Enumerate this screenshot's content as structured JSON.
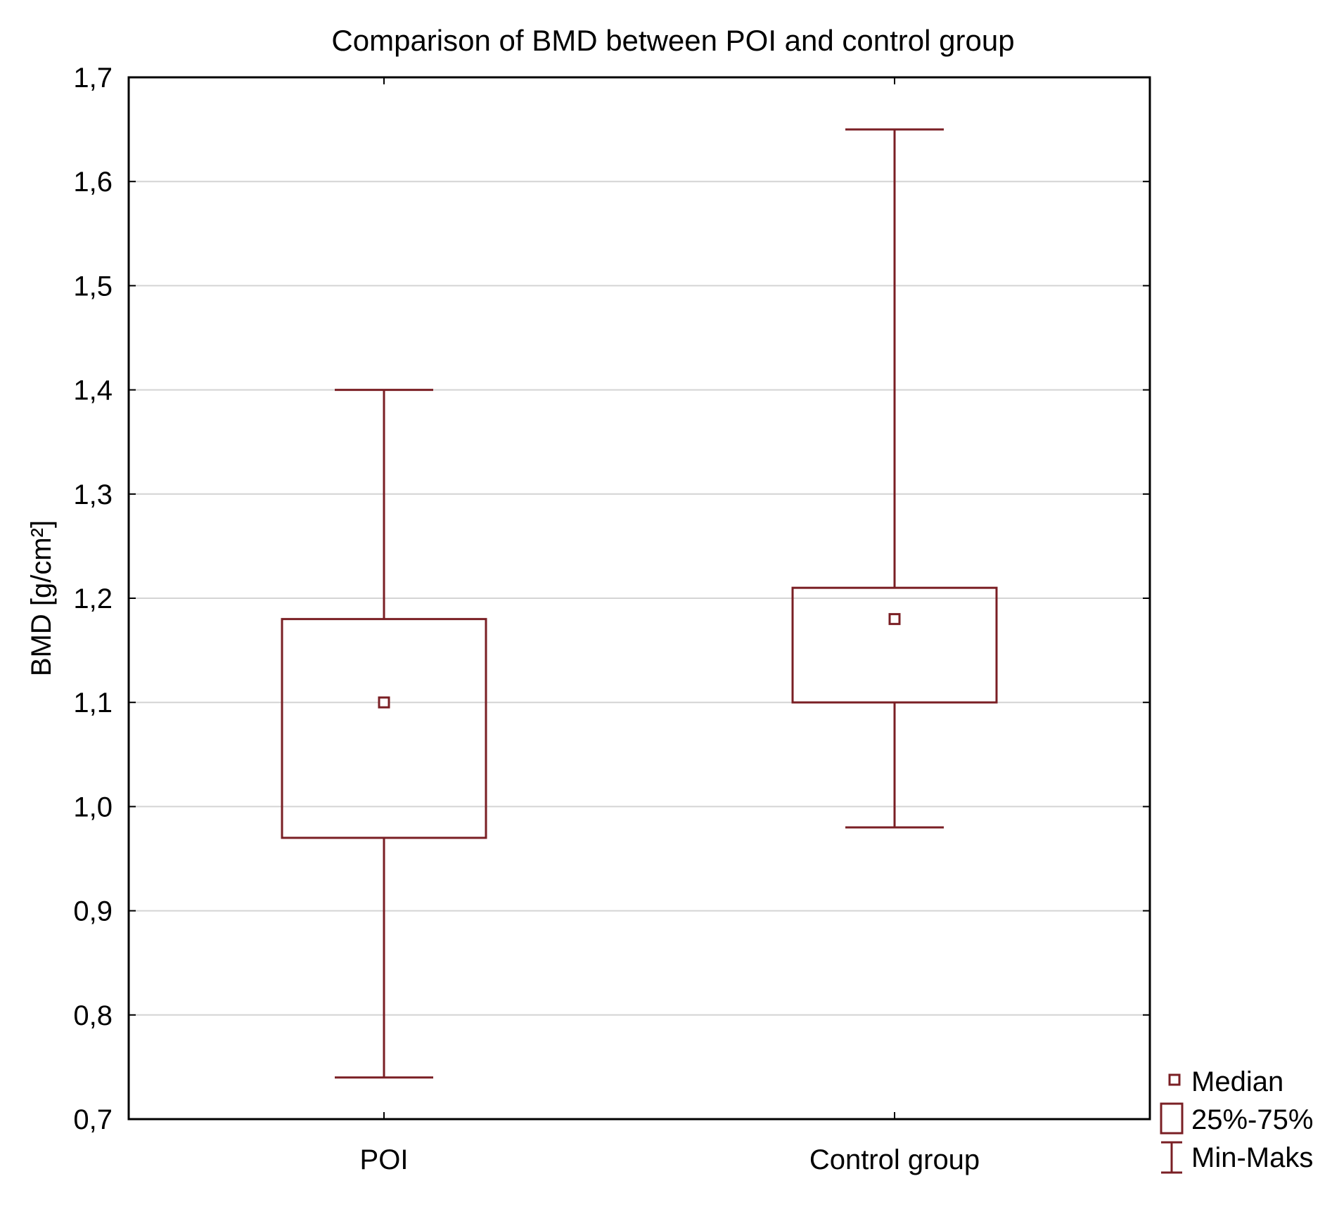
{
  "chart_data": {
    "type": "boxplot",
    "title": "Comparison of BMD between POI and control group",
    "xlabel": "",
    "ylabel": "BMD [g/cm²]",
    "ylim": [
      0.7,
      1.7
    ],
    "yticks": [
      "0,7",
      "0,8",
      "0,9",
      "1,0",
      "1,1",
      "1,2",
      "1,3",
      "1,4",
      "1,5",
      "1,6",
      "1,7"
    ],
    "ytick_values": [
      0.7,
      0.8,
      0.9,
      1.0,
      1.1,
      1.2,
      1.3,
      1.4,
      1.5,
      1.6,
      1.7
    ],
    "grid": true,
    "categories": [
      "POI",
      "Control group"
    ],
    "groups": [
      {
        "name": "POI",
        "min": 0.74,
        "q1": 0.97,
        "median": 1.1,
        "q3": 1.18,
        "max": 1.4
      },
      {
        "name": "Control group",
        "min": 0.98,
        "q1": 1.1,
        "median": 1.18,
        "q3": 1.21,
        "max": 1.65
      }
    ],
    "legend": {
      "position": "bottom-right",
      "entries": [
        "Median",
        "25%-75%",
        "Min-Maks"
      ]
    },
    "colors": {
      "box": "#7a1f24",
      "grid": "#d4d4d4",
      "axis": "#000000"
    }
  }
}
